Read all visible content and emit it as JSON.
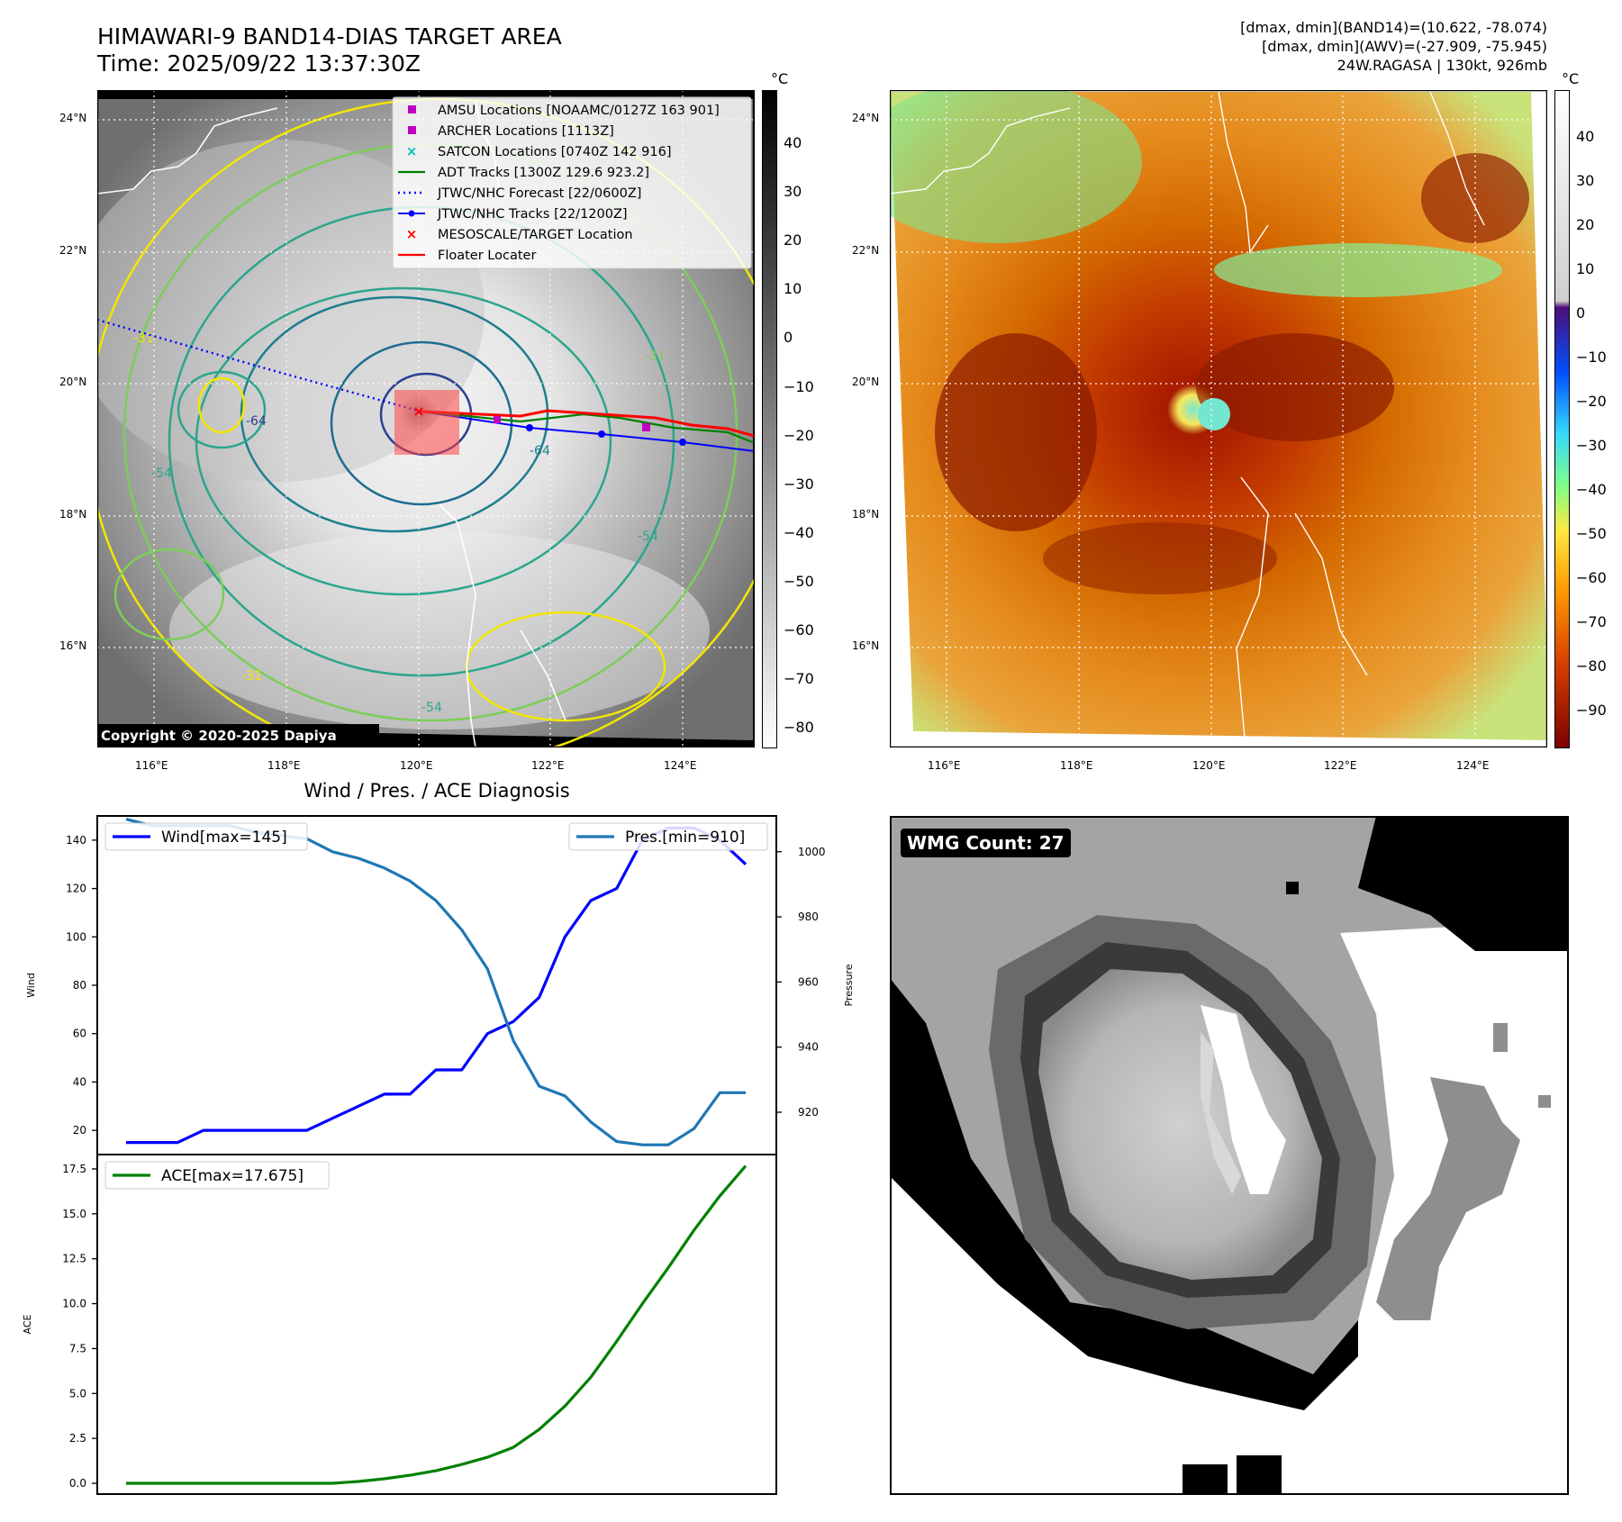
{
  "header": {
    "title_line1": "HIMAWARI-9 BAND14-DIAS TARGET AREA",
    "title_line2": "Time: 2025/09/22 13:37:30Z",
    "meta_line1": "[dmax, dmin](BAND14)=(10.622, -78.074)",
    "meta_line2": "[dmax, dmin](AWV)=(-27.909, -75.945)",
    "meta_line3": "24W.RAGASA | 130kt, 926mb"
  },
  "map": {
    "lat_labels": [
      "24°N",
      "22°N",
      "20°N",
      "18°N",
      "16°N"
    ],
    "lon_labels": [
      "116°E",
      "118°E",
      "120°E",
      "122°E",
      "124°E"
    ],
    "contour_labels": [
      "-31",
      "-54",
      "-64"
    ],
    "copyright": "Copyright © 2020-2025 Dapiya",
    "unit": "°C",
    "colorbar_left_ticks": [
      "40",
      "30",
      "20",
      "10",
      "0",
      "−10",
      "−20",
      "−30",
      "−40",
      "−50",
      "−60",
      "−70",
      "−80"
    ],
    "colorbar_right_ticks": [
      "40",
      "30",
      "20",
      "10",
      "0",
      "−10",
      "−20",
      "−30",
      "−40",
      "−50",
      "−60",
      "−70",
      "−80",
      "−90"
    ],
    "legend": [
      {
        "label": "AMSU Locations [NOAAMC/0127Z 163 901]",
        "color": "#c000c0",
        "kind": "square"
      },
      {
        "label": "ARCHER Locations [1113Z]",
        "color": "#c000c0",
        "kind": "square"
      },
      {
        "label": "SATCON Locations [0740Z 142 916]",
        "color": "#00c0c0",
        "kind": "x"
      },
      {
        "label": "ADT Tracks [1300Z 129.6 923.2]",
        "color": "#008000",
        "kind": "line"
      },
      {
        "label": "JTWC/NHC Forecast [22/0600Z]",
        "color": "#0000ff",
        "kind": "dotted"
      },
      {
        "label": "JTWC/NHC Tracks [22/1200Z]",
        "color": "#0000ff",
        "kind": "line-dot"
      },
      {
        "label": "MESOSCALE/TARGET Location",
        "color": "#ff0000",
        "kind": "x"
      },
      {
        "label": "Floater Locater",
        "color": "#ff0000",
        "kind": "line"
      }
    ]
  },
  "wmg": {
    "label": "WMG Count: 27"
  },
  "chart_data": [
    {
      "type": "line",
      "title": "Wind / Pres. / ACE Diagnosis",
      "ylabel": "Wind",
      "y2label": "Pressure",
      "ylim": [
        10,
        150
      ],
      "y2lim": [
        907,
        1011
      ],
      "yticks": [
        20,
        40,
        60,
        80,
        100,
        120,
        140
      ],
      "y2ticks": [
        920,
        940,
        960,
        980,
        1000
      ],
      "x": [
        0,
        1,
        2,
        3,
        4,
        5,
        6,
        7,
        8,
        9,
        10,
        11,
        12,
        13,
        14,
        15,
        16,
        17,
        18,
        19,
        20,
        21,
        22,
        23,
        24
      ],
      "series": [
        {
          "name": "Wind[max=145]",
          "axis": "left",
          "color": "#0000ff",
          "values": [
            15,
            15,
            15,
            20,
            20,
            20,
            20,
            20,
            25,
            30,
            35,
            35,
            45,
            45,
            60,
            65,
            75,
            100,
            115,
            120,
            140,
            145,
            145,
            140,
            130
          ]
        },
        {
          "name": "Pres.[min=910]",
          "axis": "right",
          "color": "#1f77b4",
          "values": [
            1010,
            1008,
            1008,
            1008,
            1008,
            1006,
            1005,
            1004,
            1000,
            998,
            995,
            991,
            985,
            976,
            964,
            942,
            928,
            925,
            917,
            911,
            910,
            910,
            915,
            926,
            926
          ]
        }
      ]
    },
    {
      "type": "line",
      "ylabel": "ACE",
      "ylim": [
        -0.6,
        18.3
      ],
      "yticks": [
        "0.0",
        "2.5",
        "5.0",
        "7.5",
        "10.0",
        "12.5",
        "15.0",
        "17.5"
      ],
      "x": [
        0,
        1,
        2,
        3,
        4,
        5,
        6,
        7,
        8,
        9,
        10,
        11,
        12,
        13,
        14,
        15,
        16,
        17,
        18,
        19,
        20,
        21,
        22,
        23,
        24
      ],
      "series": [
        {
          "name": "ACE[max=17.675]",
          "color": "#008000",
          "values": [
            0,
            0,
            0,
            0,
            0,
            0,
            0,
            0,
            0,
            0.1,
            0.25,
            0.45,
            0.7,
            1.05,
            1.45,
            2.0,
            3.0,
            4.3,
            5.9,
            7.9,
            10.0,
            12.0,
            14.1,
            16.0,
            17.675
          ]
        }
      ]
    }
  ]
}
